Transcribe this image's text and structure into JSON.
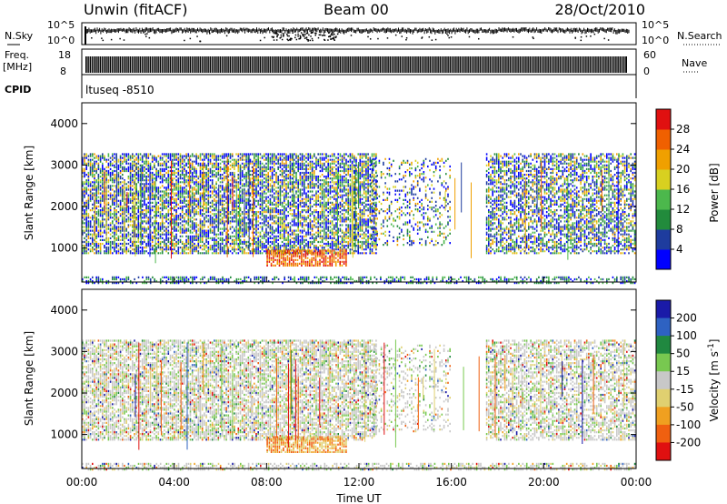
{
  "header": {
    "station": "Unwin (fitACF)",
    "beam": "Beam 00",
    "date": "28/Oct/2010"
  },
  "noise_panel": {
    "left_label": "N.Sky",
    "right_label": "N.Search",
    "left_ticks": [
      "10^5",
      "10^0"
    ],
    "right_ticks": [
      "10^5",
      "10^0"
    ]
  },
  "freq_panel": {
    "left_label_line1": "Freq.",
    "left_label_line2": "[MHz]",
    "left_ticks": [
      "18",
      "8"
    ],
    "right_label": "Nave",
    "right_ticks": [
      "60",
      "0"
    ]
  },
  "cpid_panel": {
    "left_label": "CPID",
    "text": "ltuseq -8510"
  },
  "x_axis": {
    "label": "Time UT",
    "ticks": [
      "00:00",
      "04:00",
      "08:00",
      "12:00",
      "16:00",
      "20:00",
      "00:00"
    ],
    "range_hours": [
      0,
      24
    ]
  },
  "power_panel": {
    "ylabel": "Slant Range [km]",
    "yticks": [
      "1000",
      "2000",
      "3000",
      "4000"
    ],
    "yrange_km": [
      180,
      4500
    ],
    "colorbar_label": "Power [dB]",
    "colorbar_ticks": [
      "4",
      "8",
      "12",
      "16",
      "20",
      "24",
      "28"
    ],
    "colors": [
      "#0000ff",
      "#1e3c9e",
      "#228b3c",
      "#4cb84c",
      "#d8d020",
      "#f0a000",
      "#f06000",
      "#e01010"
    ]
  },
  "velocity_panel": {
    "ylabel": "Slant Range [km]",
    "yticks": [
      "1000",
      "2000",
      "3000",
      "4000"
    ],
    "yrange_km": [
      180,
      4500
    ],
    "colorbar_label": "Velocity [m s^-1]",
    "colorbar_ticks": [
      "200",
      "100",
      "50",
      "15",
      "-15",
      "-50",
      "-100",
      "-200"
    ],
    "colors": [
      "#1a1aa8",
      "#2e62c2",
      "#208840",
      "#78c850",
      "#c8c8c8",
      "#e0d070",
      "#f0a020",
      "#f06010",
      "#e01010"
    ]
  },
  "chart_data": {
    "type": "heatmap",
    "x_units": "hours UT",
    "y_units": "km",
    "echo_regions": [
      {
        "name": "near range band",
        "t": [
          0,
          24
        ],
        "r": [
          180,
          350
        ],
        "density": 0.5
      },
      {
        "name": "main band A",
        "t": [
          0,
          12.8
        ],
        "r": [
          900,
          3300
        ],
        "density": 0.7
      },
      {
        "name": "low band",
        "t": [
          8,
          11.5
        ],
        "r": [
          600,
          1000
        ],
        "density": 0.8
      },
      {
        "name": "mid band",
        "t": [
          12.5,
          16
        ],
        "r": [
          1100,
          3200
        ],
        "density": 0.25
      },
      {
        "name": "main band B",
        "t": [
          17.5,
          24
        ],
        "r": [
          900,
          3300
        ],
        "density": 0.6
      }
    ]
  }
}
